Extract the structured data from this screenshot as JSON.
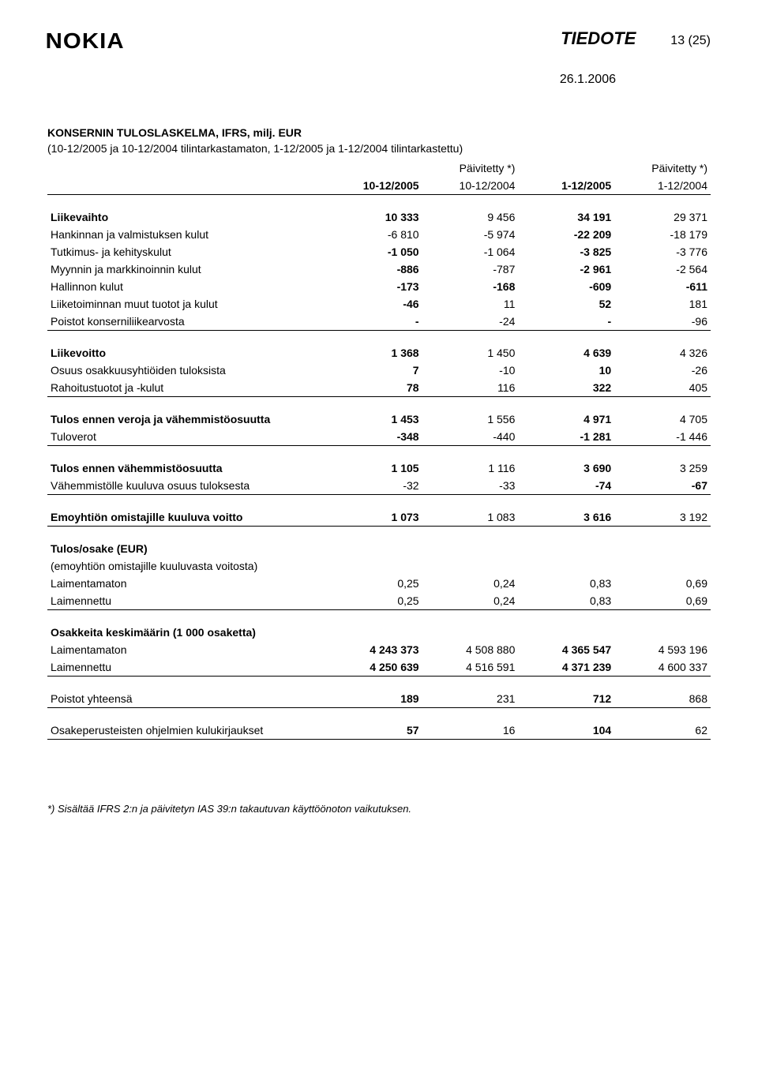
{
  "header": {
    "logo": "NOKIA",
    "tiedote": "TIEDOTE",
    "page_num": "13 (25)",
    "date": "26.1.2006"
  },
  "title": "KONSERNIN TULOSLASKELMA, IFRS, milj. EUR",
  "subtitle": "(10-12/2005 ja 10-12/2004 tilintarkastamaton, 1-12/2005 ja 1-12/2004 tilintarkastettu)",
  "columns": {
    "h1_c2": "Päivitetty *)",
    "h1_c4": "Päivitetty *)",
    "h2_c1": "10-12/2005",
    "h2_c2": "10-12/2004",
    "h2_c3": "1-12/2005",
    "h2_c4": "1-12/2004"
  },
  "rows": [
    {
      "label": "Liikevaihto",
      "v": [
        "10 333",
        "9 456",
        "34 191",
        "29 371"
      ],
      "bold": true,
      "gap": true
    },
    {
      "label": "Hankinnan ja valmistuksen kulut",
      "v": [
        "-6 810",
        "-5 974",
        "-22 209",
        "-18 179"
      ],
      "bold_v": [
        false,
        false,
        true,
        false
      ]
    },
    {
      "label": "Tutkimus- ja kehityskulut",
      "v": [
        "-1 050",
        "-1 064",
        "-3 825",
        "-3 776"
      ]
    },
    {
      "label": "Myynnin ja markkinoinnin kulut",
      "v": [
        "-886",
        "-787",
        "-2 961",
        "-2 564"
      ]
    },
    {
      "label": "Hallinnon kulut",
      "v": [
        "-173",
        "-168",
        "-609",
        "-611"
      ],
      "bold_v": [
        true,
        true,
        true,
        true
      ]
    },
    {
      "label": "Liiketoiminnan muut tuotot ja kulut",
      "v": [
        "-46",
        "11",
        "52",
        "181"
      ]
    },
    {
      "label": "Poistot konserniliikearvosta",
      "v": [
        "-",
        "-24",
        "-",
        "-96"
      ],
      "border": true
    },
    {
      "label": "Liikevoitto",
      "v": [
        "1 368",
        "1 450",
        "4 639",
        "4 326"
      ],
      "bold": true,
      "gap": true
    },
    {
      "label": "Osuus osakkuusyhtiöiden tuloksista",
      "v": [
        "7",
        "-10",
        "10",
        "-26"
      ]
    },
    {
      "label": "Rahoitustuotot ja -kulut",
      "v": [
        "78",
        "116",
        "322",
        "405"
      ],
      "border": true
    },
    {
      "label": "Tulos ennen veroja ja vähemmistöosuutta",
      "v": [
        "1 453",
        "1 556",
        "4 971",
        "4 705"
      ],
      "bold": true,
      "gap": true
    },
    {
      "label": "Tuloverot",
      "v": [
        "-348",
        "-440",
        "-1 281",
        "-1 446"
      ],
      "border": true
    },
    {
      "label": "Tulos ennen vähemmistöosuutta",
      "v": [
        "1 105",
        "1 116",
        "3 690",
        "3 259"
      ],
      "bold": true,
      "gap": true
    },
    {
      "label": "Vähemmistölle kuuluva osuus tuloksesta",
      "v": [
        "-32",
        "-33",
        "-74",
        "-67"
      ],
      "border": true,
      "bold_v": [
        false,
        false,
        true,
        true
      ]
    },
    {
      "label": "Emoyhtiön omistajille kuuluva voitto",
      "v": [
        "1 073",
        "1 083",
        "3 616",
        "3 192"
      ],
      "bold": true,
      "gap": true,
      "border": true
    }
  ],
  "eps": {
    "heading": "Tulos/osake (EUR)",
    "sub": "(emoyhtiön omistajille kuuluvasta voitosta)",
    "basic": {
      "label": "Laimentamaton",
      "v": [
        "0,25",
        "0,24",
        "0,83",
        "0,69"
      ]
    },
    "diluted": {
      "label": "Laimennettu",
      "v": [
        "0,25",
        "0,24",
        "0,83",
        "0,69"
      ]
    }
  },
  "shares": {
    "heading": "Osakkeita keskimäärin (1 000 osaketta)",
    "basic": {
      "label": "Laimentamaton",
      "v": [
        "4 243 373",
        "4 508 880",
        "4 365 547",
        "4 593 196"
      ]
    },
    "diluted": {
      "label": "Laimennettu",
      "v": [
        "4 250 639",
        "4 516 591",
        "4 371 239",
        "4 600 337"
      ]
    }
  },
  "depr": {
    "label": "Poistot yhteensä",
    "v": [
      "189",
      "231",
      "712",
      "868"
    ]
  },
  "sbc": {
    "label": "Osakeperusteisten ohjelmien kulukirjaukset",
    "v": [
      "57",
      "16",
      "104",
      "62"
    ]
  },
  "footnote": "*) Sisältää IFRS 2:n ja päivitetyn IAS 39:n takautuvan käyttöönoton vaikutuksen."
}
